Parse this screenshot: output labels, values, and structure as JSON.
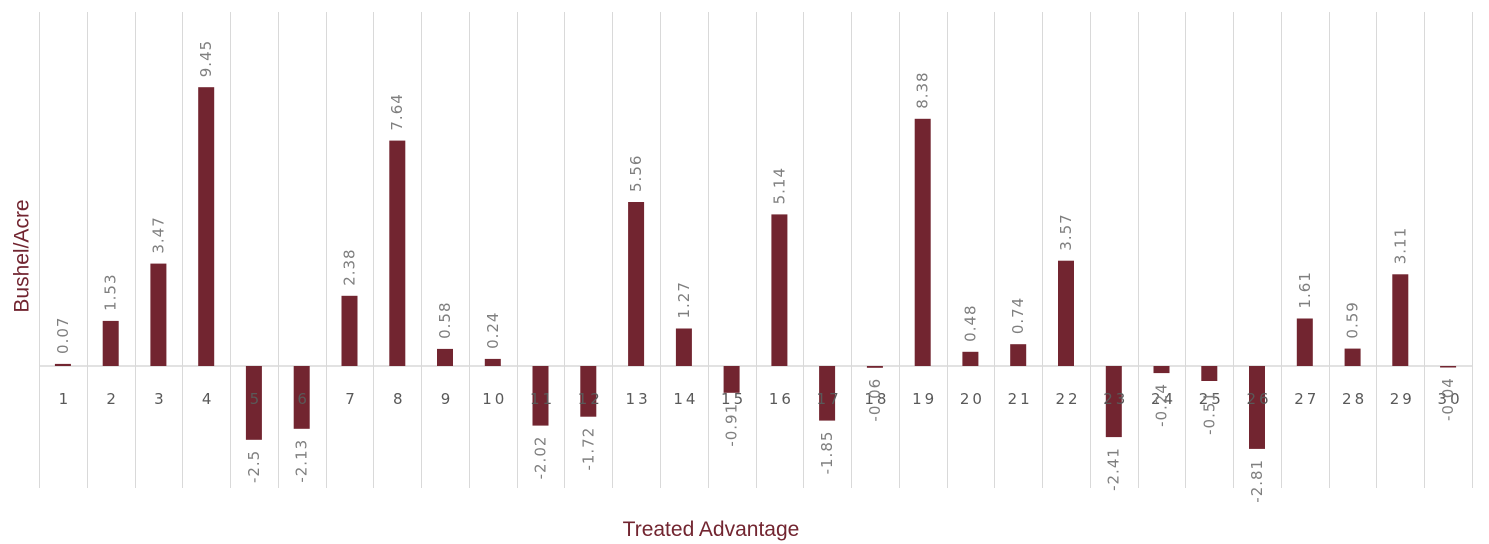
{
  "chart_data": {
    "type": "bar",
    "title": "",
    "xlabel": "Treated Advantage",
    "ylabel": "Bushel/Acre",
    "categories": [
      "1",
      "2",
      "3",
      "4",
      "5",
      "6",
      "7",
      "8",
      "9",
      "10",
      "11",
      "12",
      "13",
      "14",
      "15",
      "16",
      "17",
      "18",
      "19",
      "20",
      "21",
      "22",
      "23",
      "24",
      "25",
      "26",
      "27",
      "28",
      "29",
      "30"
    ],
    "series": [
      {
        "values": [
          0.07,
          1.53,
          3.47,
          9.45,
          -2.5,
          -2.13,
          2.38,
          7.64,
          0.58,
          0.24,
          -2.02,
          -1.72,
          5.56,
          1.27,
          -0.91,
          5.14,
          -1.85,
          -0.06,
          8.38,
          0.48,
          0.74,
          3.57,
          -2.41,
          -0.24,
          -0.51,
          -2.81,
          1.61,
          0.59,
          3.11,
          -0.04
        ],
        "labels": [
          "0.07",
          "1.53",
          "3.47",
          "9.45",
          "-2.5",
          "-2.13",
          "2.38",
          "7.64",
          "0.58",
          "0.24",
          "-2.02",
          "-1.72",
          "5.56",
          "1.27",
          "-0.91",
          "5.14",
          "-1.85",
          "-0.06",
          "8.38",
          "0.48",
          "0.74",
          "3.57",
          "-2.41",
          "-0.24",
          "-0.51",
          "-2.81",
          "1.61",
          "0.59",
          "3.11",
          "-0.04"
        ]
      }
    ],
    "ylim": [
      -4,
      12
    ],
    "grid": "vertical category separators",
    "legend": "none",
    "colors": {
      "bar": "#722530",
      "axis_title": "#722530",
      "grid": "#d9d9d9",
      "tick_text": "#595959",
      "data_label": "#7f7f7f"
    }
  }
}
